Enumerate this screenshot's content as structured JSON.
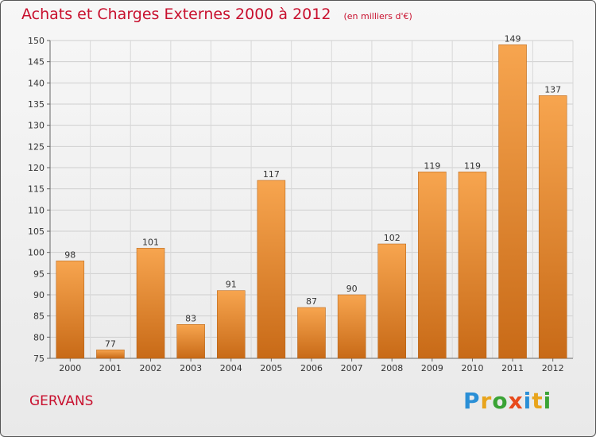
{
  "header": {
    "title": "Achats et Charges Externes 2000 à 2012",
    "subtitle": "(en milliers d'€)"
  },
  "footer": {
    "commune": "GERVANS",
    "brand": "Proxiti",
    "brand_colors": [
      "#2a8fd6",
      "#e8a41c",
      "#3aa335",
      "#e84a1c",
      "#2a8fd6",
      "#e8a41c",
      "#3aa335"
    ]
  },
  "colors": {
    "bar_top": "#f7a54f",
    "bar_bottom": "#c86a17",
    "title": "#c8102e"
  },
  "chart_data": {
    "type": "bar",
    "title": "Achats et Charges Externes 2000 à 2012",
    "subtitle": "(en milliers d'€)",
    "xlabel": "",
    "ylabel": "",
    "categories": [
      "2000",
      "2001",
      "2002",
      "2003",
      "2004",
      "2005",
      "2006",
      "2007",
      "2008",
      "2009",
      "2010",
      "2011",
      "2012"
    ],
    "values": [
      98,
      77,
      101,
      83,
      91,
      117,
      87,
      90,
      102,
      119,
      119,
      149,
      137
    ],
    "ylim": [
      75,
      150
    ],
    "yticks": [
      75,
      80,
      85,
      90,
      95,
      100,
      105,
      110,
      115,
      120,
      125,
      130,
      135,
      140,
      145,
      150
    ],
    "grid": true,
    "legend": "none",
    "data_labels": true
  }
}
